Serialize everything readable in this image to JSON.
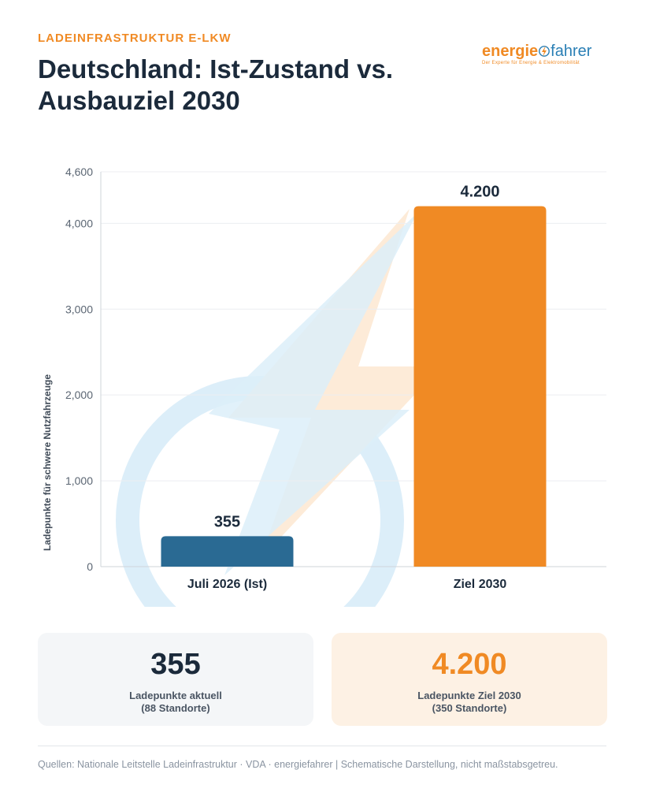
{
  "header": {
    "kicker": "LADEINFRASTRUKTUR E-LKW",
    "title_line1": "Deutschland: Ist-Zustand vs.",
    "title_line2": "Ausbauziel 2030"
  },
  "logo": {
    "word_part1": "energie",
    "word_part2": "fahrer",
    "tagline": "Der Experte für Energie & Elektromobilität",
    "icon": "lightning-bolt-icon"
  },
  "chart_data": {
    "type": "bar",
    "categories": [
      "Juli 2026 (Ist)",
      "Ziel 2030"
    ],
    "values": [
      355,
      4200
    ],
    "value_labels": [
      "355",
      "4.200"
    ],
    "ylabel": "Ladepunkte für schwere Nutzfahrzeuge",
    "ylim": [
      0,
      4600
    ],
    "yticks": [
      0,
      1000,
      2000,
      3000,
      4000,
      4600
    ],
    "ytick_labels": [
      "0",
      "1,000",
      "2,000",
      "3,000",
      "4,000",
      "4,600"
    ],
    "grid": true,
    "colors": [
      "#2A6A93",
      "#F08A24"
    ],
    "watermark_icon": "lightning-bolt-icon"
  },
  "cards": [
    {
      "value": "355",
      "label": "Ladepunkte aktuell",
      "sub": "(88 Standorte)"
    },
    {
      "value": "4.200",
      "label": "Ladepunkte Ziel 2030",
      "sub": "(350 Standorte)"
    }
  ],
  "footer": {
    "text": "Quellen: Nationale Leitstelle Ladeinfrastruktur · VDA · energiefahrer  |  Schematische Darstellung, nicht maßstabsgetreu."
  }
}
